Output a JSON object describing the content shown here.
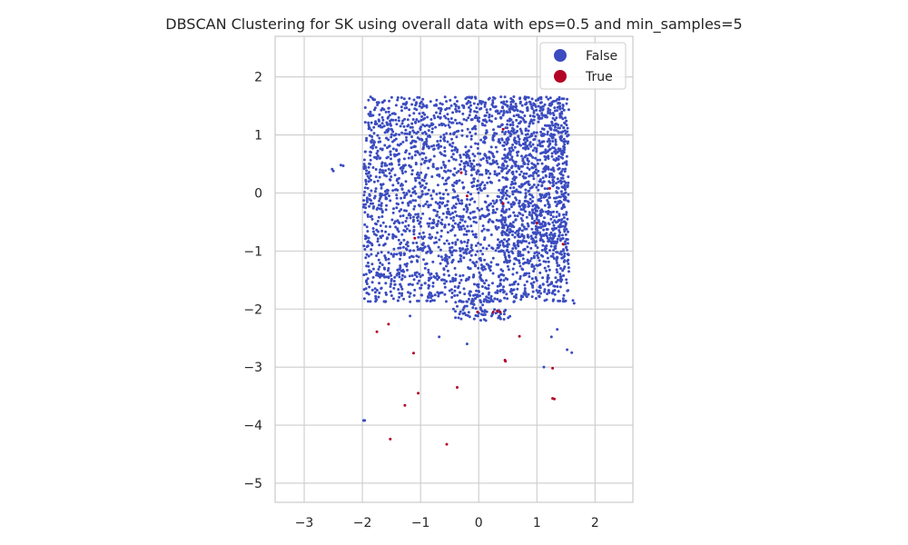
{
  "chart_data": {
    "type": "scatter",
    "title": "DBSCAN Clustering for SK using overall data with eps=0.5 and min_samples=5",
    "xlabel": "",
    "ylabel": "",
    "xlim": [
      -3.5,
      2.65
    ],
    "ylim": [
      -5.33,
      2.7
    ],
    "xticks": [
      -3,
      -2,
      -1,
      0,
      1,
      2
    ],
    "yticks": [
      -5,
      -4,
      -3,
      -2,
      -1,
      0,
      1,
      2
    ],
    "xtick_labels": [
      "−3",
      "−2",
      "−1",
      "0",
      "1",
      "2"
    ],
    "ytick_labels": [
      "−5",
      "−4",
      "−3",
      "−2",
      "−1",
      "0",
      "1",
      "2"
    ],
    "grid": true,
    "legend_position": "top-right",
    "colors": {
      "False": "#3b4cc0",
      "True": "#b40426"
    },
    "series": [
      {
        "name": "False",
        "description_count": "~2500 dense points filling approx x∈[-2,1.6], y∈[-2.1,1.7]",
        "points": [
          [
            -2.52,
            0.41
          ],
          [
            -2.5,
            0.38
          ],
          [
            -2.37,
            0.48
          ],
          [
            -2.33,
            0.47
          ],
          [
            -1.98,
            -3.92
          ],
          [
            -1.96,
            -3.92
          ],
          [
            1.52,
            -2.7
          ],
          [
            1.6,
            -2.75
          ],
          [
            1.62,
            -1.85
          ],
          [
            1.64,
            -1.9
          ],
          [
            -0.2,
            -2.6
          ],
          [
            -0.68,
            -2.48
          ],
          [
            1.12,
            -3.0
          ],
          [
            -1.18,
            -2.12
          ],
          [
            0.1,
            -2.05
          ],
          [
            0.35,
            -2.12
          ],
          [
            -0.4,
            -2.15
          ],
          [
            -0.22,
            -2.1
          ],
          [
            1.25,
            -2.48
          ],
          [
            1.35,
            -2.35
          ]
        ]
      },
      {
        "name": "True",
        "points": [
          [
            -1.52,
            -4.24
          ],
          [
            -0.55,
            -4.33
          ],
          [
            -1.27,
            -3.66
          ],
          [
            -1.04,
            -3.45
          ],
          [
            -0.37,
            -3.35
          ],
          [
            1.27,
            -3.54
          ],
          [
            1.3,
            -3.55
          ],
          [
            1.27,
            -3.02
          ],
          [
            0.45,
            -2.88
          ],
          [
            0.46,
            -2.9
          ],
          [
            -1.12,
            -2.76
          ],
          [
            0.7,
            -2.47
          ],
          [
            -1.75,
            -2.39
          ],
          [
            -1.55,
            -2.26
          ],
          [
            0.25,
            -2.05
          ],
          [
            0.32,
            -2.03
          ],
          [
            0.37,
            -2.05
          ],
          [
            -0.02,
            -2.05
          ],
          [
            -0.3,
            0.35
          ],
          [
            -0.2,
            -0.05
          ],
          [
            0.42,
            -0.18
          ],
          [
            1.0,
            -0.52
          ],
          [
            1.45,
            -0.88
          ],
          [
            0.42,
            1.1
          ],
          [
            1.22,
            0.08
          ],
          [
            -1.1,
            -0.78
          ]
        ]
      }
    ]
  }
}
